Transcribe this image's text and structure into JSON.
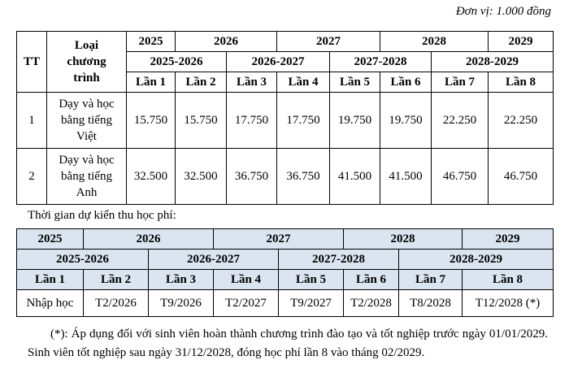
{
  "unit": "Đơn vị: 1.000 đồng",
  "table1": {
    "header": {
      "tt": "TT",
      "program": "Loại chương trình",
      "years": [
        "2025",
        "2026",
        "2027",
        "2028",
        "2029"
      ],
      "periods": [
        "2025-2026",
        "2026-2027",
        "2027-2028",
        "2028-2029"
      ],
      "installments": [
        "Lần 1",
        "Lần 2",
        "Lần 3",
        "Lần 4",
        "Lần 5",
        "Lần 6",
        "Lần 7",
        "Lần 8"
      ]
    },
    "rows": [
      {
        "tt": "1",
        "program": "Dạy và học bằng tiếng Việt",
        "values": [
          "15.750",
          "15.750",
          "17.750",
          "17.750",
          "19.750",
          "19.750",
          "22.250",
          "22.250"
        ]
      },
      {
        "tt": "2",
        "program": "Dạy và học bằng tiếng Anh",
        "values": [
          "32.500",
          "32.500",
          "36.750",
          "36.750",
          "41.500",
          "41.500",
          "46.750",
          "46.750"
        ]
      }
    ]
  },
  "schedule_label": "Thời gian dự kiến thu học phí:",
  "table2": {
    "years": [
      "2025",
      "2026",
      "2027",
      "2028",
      "2029"
    ],
    "periods": [
      "2025-2026",
      "2026-2027",
      "2027-2028",
      "2028-2029"
    ],
    "installments": [
      "Lần 1",
      "Lần 2",
      "Lần 3",
      "Lần 4",
      "Lần 5",
      "Lần 6",
      "Lần 7",
      "Lần 8"
    ],
    "dates": [
      "Nhập học",
      "T2/2026",
      "T9/2026",
      "T2/2027",
      "T9/2027",
      "T2/2028",
      "T8/2028",
      "T12/2028 (*)"
    ]
  },
  "footnote": "(*): Áp dụng đối với sinh viên hoàn thành chương trình đào tạo và tốt nghiệp trước ngày 01/01/2029. Sinh viên tốt nghiệp sau ngày 31/12/2028, đóng học phí lần 8 vào tháng 02/2029."
}
